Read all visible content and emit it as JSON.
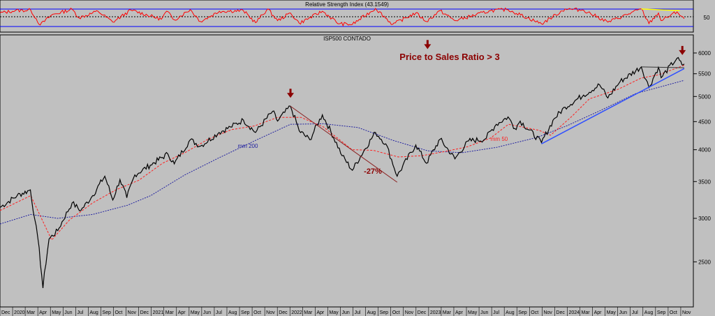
{
  "rsi_panel": {
    "title": "Relative Strength Index (43.1549)",
    "tick_label": "50"
  },
  "price_panel": {
    "title": "ISP500 CONTADO",
    "annotation_ratio": "Price to Sales Ratio > 3",
    "annotation_drawdown": "-27%",
    "label_mm200": "mm 200",
    "label_mm50": "mm 50"
  },
  "colors": {
    "background": "#c0c0c0",
    "price": "#000000",
    "mm50": "#ff2020",
    "mm200": "#2020a0",
    "rsi": "#ff0000",
    "rsi_bounds": "#0000ff",
    "trendline": "#3050ff",
    "declineline": "#8b2020",
    "arrow": "#8b0000",
    "rsi_divergence": "#ffff00"
  },
  "chart_data": {
    "type": "line",
    "yscale": "log",
    "ylim": [
      2100,
      6250
    ],
    "yticks": [
      2500,
      3000,
      3500,
      4000,
      4500,
      5000,
      5500,
      6000
    ],
    "x_start": "2019-12-01",
    "x_end": "2024-11-30",
    "month_labels": [
      "Dec",
      "2020",
      "Mar",
      "Apr",
      "May",
      "Jun",
      "Jul",
      "Aug",
      "Sep",
      "Oct",
      "Nov",
      "Dec",
      "2021",
      "Mar",
      "Apr",
      "May",
      "Jun",
      "Jul",
      "Aug",
      "Sep",
      "Oct",
      "Nov",
      "Dec",
      "2022",
      "Mar",
      "Apr",
      "May",
      "Jun",
      "Jul",
      "Aug",
      "Sep",
      "Oct",
      "Nov",
      "Dec",
      "2023",
      "Mar",
      "Apr",
      "May",
      "Jun",
      "Jul",
      "Aug",
      "Sep",
      "Oct",
      "Nov",
      "Dec",
      "2024",
      "Mar",
      "Apr",
      "May",
      "Jun",
      "Jul",
      "Aug",
      "Sep",
      "Oct",
      "Nov"
    ],
    "series": [
      {
        "name": "ISP500 CONTADO",
        "points": [
          [
            "2019-12-01",
            3140
          ],
          [
            "2020-01-15",
            3300
          ],
          [
            "2020-02-19",
            3380
          ],
          [
            "2020-03-01",
            3000
          ],
          [
            "2020-03-10",
            2750
          ],
          [
            "2020-03-23",
            2240
          ],
          [
            "2020-04-08",
            2750
          ],
          [
            "2020-05-01",
            2850
          ],
          [
            "2020-06-08",
            3200
          ],
          [
            "2020-07-01",
            3100
          ],
          [
            "2020-08-01",
            3300
          ],
          [
            "2020-09-02",
            3580
          ],
          [
            "2020-09-23",
            3240
          ],
          [
            "2020-10-12",
            3530
          ],
          [
            "2020-10-30",
            3270
          ],
          [
            "2020-11-20",
            3600
          ],
          [
            "2020-12-31",
            3750
          ],
          [
            "2021-02-15",
            3930
          ],
          [
            "2021-03-04",
            3770
          ],
          [
            "2021-04-15",
            4170
          ],
          [
            "2021-05-12",
            4060
          ],
          [
            "2021-06-30",
            4300
          ],
          [
            "2021-07-30",
            4400
          ],
          [
            "2021-09-02",
            4530
          ],
          [
            "2021-10-04",
            4300
          ],
          [
            "2021-11-18",
            4700
          ],
          [
            "2021-12-01",
            4510
          ],
          [
            "2022-01-04",
            4800
          ],
          [
            "2022-01-27",
            4330
          ],
          [
            "2022-02-24",
            4170
          ],
          [
            "2022-03-29",
            4630
          ],
          [
            "2022-05-20",
            3900
          ],
          [
            "2022-06-16",
            3670
          ],
          [
            "2022-08-16",
            4300
          ],
          [
            "2022-09-12",
            4100
          ],
          [
            "2022-10-12",
            3580
          ],
          [
            "2022-11-30",
            4080
          ],
          [
            "2022-12-28",
            3780
          ],
          [
            "2023-02-02",
            4180
          ],
          [
            "2023-03-13",
            3850
          ],
          [
            "2023-04-18",
            4150
          ],
          [
            "2023-05-31",
            4180
          ],
          [
            "2023-06-30",
            4450
          ],
          [
            "2023-07-31",
            4590
          ],
          [
            "2023-08-18",
            4370
          ],
          [
            "2023-09-01",
            4510
          ],
          [
            "2023-10-27",
            4120
          ],
          [
            "2023-11-30",
            4560
          ],
          [
            "2023-12-28",
            4780
          ],
          [
            "2024-02-15",
            5030
          ],
          [
            "2024-03-28",
            5250
          ],
          [
            "2024-04-19",
            4970
          ],
          [
            "2024-05-21",
            5320
          ],
          [
            "2024-07-16",
            5660
          ],
          [
            "2024-08-05",
            5190
          ],
          [
            "2024-08-30",
            5650
          ],
          [
            "2024-09-06",
            5410
          ],
          [
            "2024-10-18",
            5870
          ],
          [
            "2024-10-31",
            5710
          ],
          [
            "2024-11-06",
            5730
          ]
        ]
      },
      {
        "name": "mm 50",
        "points": [
          [
            "2019-12-01",
            3100
          ],
          [
            "2020-02-20",
            3300
          ],
          [
            "2020-04-15",
            2740
          ],
          [
            "2020-06-01",
            2980
          ],
          [
            "2020-08-01",
            3200
          ],
          [
            "2020-10-01",
            3380
          ],
          [
            "2020-12-01",
            3520
          ],
          [
            "2021-02-01",
            3780
          ],
          [
            "2021-04-01",
            3950
          ],
          [
            "2021-06-01",
            4180
          ],
          [
            "2021-08-01",
            4350
          ],
          [
            "2021-10-01",
            4420
          ],
          [
            "2021-12-01",
            4580
          ],
          [
            "2022-02-01",
            4580
          ],
          [
            "2022-04-01",
            4400
          ],
          [
            "2022-06-15",
            4000
          ],
          [
            "2022-08-10",
            3990
          ],
          [
            "2022-10-15",
            3880
          ],
          [
            "2022-12-15",
            3900
          ],
          [
            "2023-02-15",
            3970
          ],
          [
            "2023-04-15",
            4050
          ],
          [
            "2023-06-15",
            4200
          ],
          [
            "2023-08-01",
            4450
          ],
          [
            "2023-10-20",
            4340
          ],
          [
            "2023-11-20",
            4250
          ],
          [
            "2024-01-15",
            4600
          ],
          [
            "2024-03-01",
            4950
          ],
          [
            "2024-05-15",
            5150
          ],
          [
            "2024-07-15",
            5400
          ],
          [
            "2024-09-01",
            5480
          ],
          [
            "2024-11-06",
            5700
          ]
        ]
      },
      {
        "name": "mm 200",
        "points": [
          [
            "2019-12-01",
            2930
          ],
          [
            "2020-02-20",
            3050
          ],
          [
            "2020-05-01",
            3000
          ],
          [
            "2020-08-01",
            3050
          ],
          [
            "2020-11-01",
            3170
          ],
          [
            "2021-01-01",
            3300
          ],
          [
            "2021-04-01",
            3600
          ],
          [
            "2021-07-01",
            3870
          ],
          [
            "2021-10-01",
            4150
          ],
          [
            "2022-01-04",
            4450
          ],
          [
            "2022-04-01",
            4460
          ],
          [
            "2022-07-01",
            4390
          ],
          [
            "2022-10-01",
            4160
          ],
          [
            "2023-01-01",
            3980
          ],
          [
            "2023-04-01",
            3950
          ],
          [
            "2023-07-01",
            4040
          ],
          [
            "2023-10-15",
            4210
          ],
          [
            "2024-01-01",
            4420
          ],
          [
            "2024-04-01",
            4720
          ],
          [
            "2024-07-01",
            5060
          ],
          [
            "2024-11-06",
            5350
          ]
        ]
      },
      {
        "name": "Relative Strength Index (43.1549)",
        "ylim": [
          0,
          100
        ],
        "bands": [
          30,
          70
        ],
        "points": [
          [
            "2019-12-01",
            62
          ],
          [
            "2020-01-10",
            70
          ],
          [
            "2020-02-20",
            72
          ],
          [
            "2020-03-16",
            20
          ],
          [
            "2020-04-15",
            55
          ],
          [
            "2020-06-08",
            75
          ],
          [
            "2020-06-26",
            45
          ],
          [
            "2020-08-15",
            68
          ],
          [
            "2020-09-23",
            30
          ],
          [
            "2020-11-10",
            72
          ],
          [
            "2021-01-29",
            40
          ],
          [
            "2021-02-12",
            68
          ],
          [
            "2021-03-04",
            38
          ],
          [
            "2021-04-15",
            74
          ],
          [
            "2021-05-12",
            32
          ],
          [
            "2021-07-01",
            68
          ],
          [
            "2021-09-02",
            70
          ],
          [
            "2021-10-04",
            28
          ],
          [
            "2021-11-05",
            76
          ],
          [
            "2021-12-01",
            35
          ],
          [
            "2022-01-04",
            62
          ],
          [
            "2022-01-27",
            26
          ],
          [
            "2022-03-29",
            68
          ],
          [
            "2022-05-12",
            24
          ],
          [
            "2022-06-16",
            22
          ],
          [
            "2022-08-16",
            78
          ],
          [
            "2022-09-30",
            22
          ],
          [
            "2022-11-30",
            62
          ],
          [
            "2022-12-28",
            32
          ],
          [
            "2023-02-02",
            70
          ],
          [
            "2023-03-13",
            35
          ],
          [
            "2023-06-15",
            70
          ],
          [
            "2023-07-31",
            74
          ],
          [
            "2023-10-27",
            24
          ],
          [
            "2023-12-28",
            76
          ],
          [
            "2024-02-15",
            72
          ],
          [
            "2024-04-19",
            30
          ],
          [
            "2024-07-16",
            76
          ],
          [
            "2024-08-05",
            25
          ],
          [
            "2024-08-30",
            62
          ],
          [
            "2024-09-06",
            35
          ],
          [
            "2024-10-18",
            66
          ],
          [
            "2024-11-06",
            42
          ]
        ]
      }
    ],
    "trendline": [
      [
        "2023-10-27",
        4100
      ],
      [
        "2024-11-06",
        5620
      ]
    ],
    "decline_line": [
      [
        "2022-01-04",
        4800
      ],
      [
        "2022-10-12",
        3490
      ]
    ],
    "top_line": [
      [
        "2024-07-16",
        5660
      ],
      [
        "2024-11-06",
        5640
      ]
    ],
    "rsi_divergence_line": [
      [
        "2024-07-16",
        76
      ],
      [
        "2024-10-25",
        70
      ]
    ],
    "arrows": [
      [
        "2022-01-04",
        5030
      ],
      [
        "2022-12-31",
        6170
      ],
      [
        "2024-11-01",
        6020
      ]
    ]
  }
}
